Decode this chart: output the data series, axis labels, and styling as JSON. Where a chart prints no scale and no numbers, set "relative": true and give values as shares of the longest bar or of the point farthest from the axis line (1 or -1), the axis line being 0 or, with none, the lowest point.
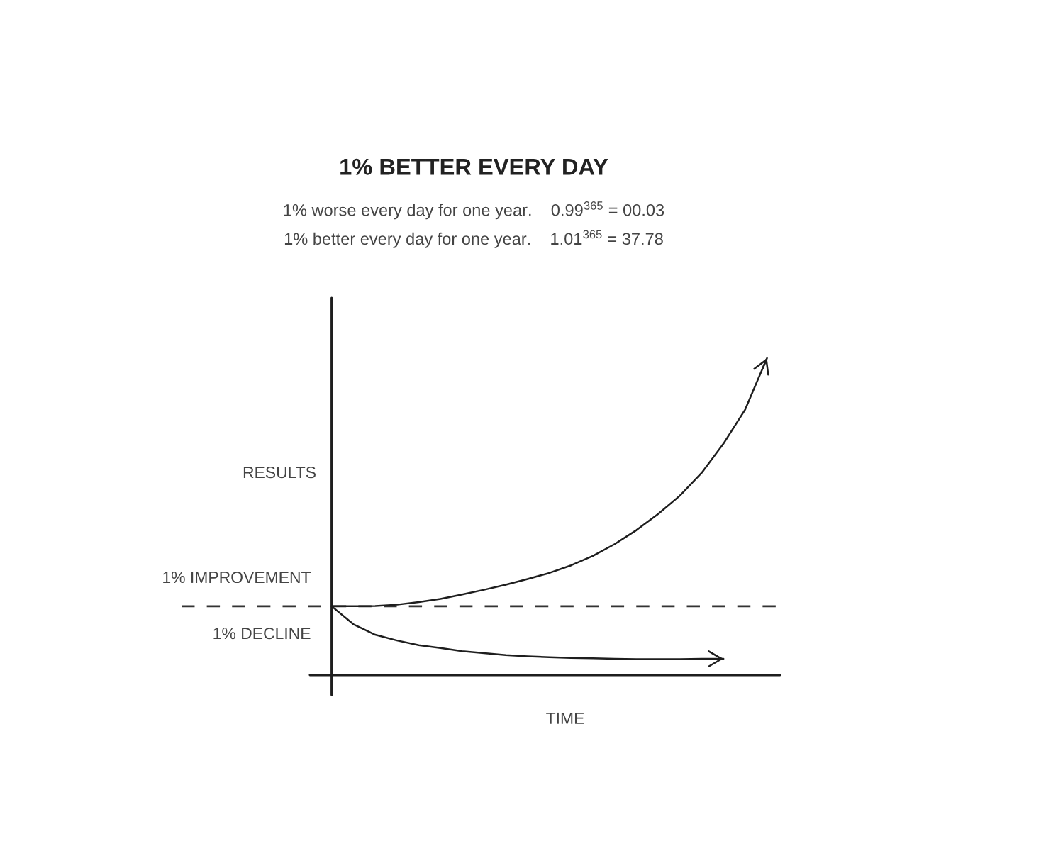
{
  "chart_data": {
    "type": "line",
    "title": "1% BETTER EVERY DAY",
    "subtitle": "1% worse every day for one year.    0.99$^{365}$ = 00.03\n1% better every day for one year.    1.01$^{365}$ = 37.78",
    "xlabel": "TIME",
    "ylabel": "RESULTS",
    "relative": true,
    "categories": [
      null,
      null,
      null,
      null,
      null,
      null,
      null,
      null,
      null,
      null,
      null,
      null,
      null,
      null,
      null,
      null,
      null,
      null,
      null,
      null,
      null
    ],
    "series": [
      {
        "name": "1% IMPROVEMENT",
        "color": "#1e1e1e",
        "values": [
          0.217,
          0.217,
          0.218,
          0.222,
          0.23,
          0.24,
          0.254,
          0.269,
          0.285,
          0.303,
          0.322,
          0.346,
          0.376,
          0.413,
          0.457,
          0.508,
          0.566,
          0.638,
          0.73,
          0.838,
          1.0
        ]
      },
      {
        "name": "1% DECLINE",
        "color": "#1e1e1e",
        "values": [
          0.217,
          0.16,
          0.127,
          0.109,
          0.094,
          0.085,
          0.075,
          0.069,
          0.063,
          0.059,
          0.056,
          0.054,
          0.053,
          0.051,
          0.05,
          0.05,
          0.05,
          0.051,
          0.051,
          null,
          null
        ]
      }
    ],
    "ref_lines": [
      {
        "axis": "y",
        "value": 0.217,
        "color": "#333333",
        "line_style": "dashed"
      }
    ]
  }
}
